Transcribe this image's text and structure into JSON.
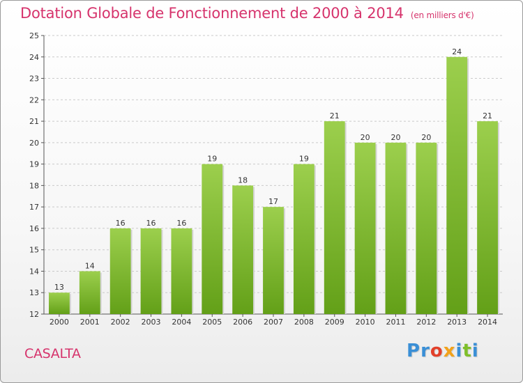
{
  "header": {
    "title": "Dotation Globale de Fonctionnement de 2000 à 2014",
    "subtitle": "(en milliers d'€)"
  },
  "footer": {
    "place": "CASALTA",
    "logo": [
      {
        "char": "P",
        "color": "#3a8fd6"
      },
      {
        "char": "r",
        "color": "#3a8fd6"
      },
      {
        "char": "o",
        "color": "#e2402a"
      },
      {
        "char": "x",
        "color": "#f2a21b"
      },
      {
        "char": "i",
        "color": "#3a8fd6"
      },
      {
        "char": "t",
        "color": "#7fbf2a"
      },
      {
        "char": "i",
        "color": "#3a8fd6"
      }
    ]
  },
  "chart_data": {
    "type": "bar",
    "categories": [
      "2000",
      "2001",
      "2002",
      "2003",
      "2004",
      "2005",
      "2006",
      "2007",
      "2008",
      "2009",
      "2010",
      "2011",
      "2012",
      "2013",
      "2014"
    ],
    "values": [
      13,
      14,
      16,
      16,
      16,
      19,
      18,
      17,
      19,
      21,
      20,
      20,
      20,
      24,
      21
    ],
    "ylim": [
      12,
      25
    ],
    "yticks": [
      12,
      13,
      14,
      15,
      16,
      17,
      18,
      19,
      20,
      21,
      22,
      23,
      24,
      25
    ],
    "grid": "horizontal-dashed",
    "bar_color_top": "#9ccf4d",
    "bar_color_bottom": "#63a018",
    "data_labels": true
  }
}
